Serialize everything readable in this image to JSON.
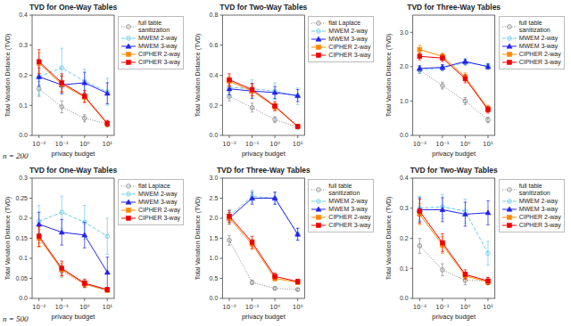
{
  "chart_data": [
    {
      "type": "line",
      "title": "TVD for One-Way Tables",
      "x_label": "privacy budget",
      "y_label": "Total Variation Distance (TVD)",
      "annotations": [
        "n = 200"
      ],
      "log": "x",
      "grid": false,
      "legend": "right",
      "x": [
        0.01,
        0.1,
        1.0,
        10.0
      ],
      "xlim": [
        0.005,
        20
      ],
      "xticks": [
        {
          "value": 0.01,
          "label": "10⁻²"
        },
        {
          "value": 0.1,
          "label": "10⁻¹"
        },
        {
          "value": 1.0,
          "label": "10⁰"
        },
        {
          "value": 10.0,
          "label": "10¹"
        }
      ],
      "ylim": [
        0.0,
        0.4
      ],
      "yticks": [
        {
          "value": 0.0,
          "label": "0.0"
        },
        0.1,
        0.2,
        0.3,
        0.4
      ],
      "series": [
        {
          "name": "full table\nsanitization",
          "color": "#888888",
          "marker": "open-circle",
          "line_style": "dotted",
          "values": [
            0.155,
            0.095,
            0.057,
            0.038
          ],
          "errors": [
            0.025,
            0.02,
            0.012,
            0.01
          ]
        },
        {
          "name": "MWEM 2-way",
          "color": "#66CCEE",
          "marker": "open-circle",
          "line_style": "dashed",
          "values": [
            0.195,
            0.225,
            0.18,
            0.145
          ],
          "errors": [
            0.06,
            0.065,
            0.04,
            0.045
          ]
        },
        {
          "name": "MWEM 3-way",
          "color": "#2222EE",
          "marker": "triangle",
          "line_style": "solid",
          "values": [
            0.195,
            0.168,
            0.175,
            0.14
          ],
          "errors": [
            0.03,
            0.03,
            0.035,
            0.035
          ]
        },
        {
          "name": "CIPHER 2-way",
          "color": "#FF8800",
          "marker": "square",
          "line_style": "solid",
          "values": [
            0.24,
            0.17,
            0.127,
            0.038
          ],
          "errors": [
            0.035,
            0.028,
            0.018,
            0.008
          ]
        },
        {
          "name": "CIPHER 3-way",
          "color": "#EE0000",
          "marker": "square",
          "line_style": "solid",
          "values": [
            0.245,
            0.175,
            0.13,
            0.04
          ],
          "errors": [
            0.04,
            0.03,
            0.02,
            0.01
          ]
        }
      ]
    },
    {
      "type": "line",
      "title": "TVD for Two-Way Tables",
      "x_label": "privacy budget",
      "y_label": "Total Variation Distance (TVD)",
      "log": "x",
      "grid": false,
      "legend": "right",
      "x": [
        0.01,
        0.1,
        1.0,
        10.0
      ],
      "xlim": [
        0.005,
        20
      ],
      "xticks": [
        {
          "value": 0.01,
          "label": "10⁻²"
        },
        {
          "value": 0.1,
          "label": "10⁻¹"
        },
        {
          "value": 1.0,
          "label": "10⁰"
        },
        {
          "value": 10.0,
          "label": "10¹"
        }
      ],
      "ylim": [
        0.0,
        0.8
      ],
      "yticks": [
        {
          "value": 0.0,
          "label": "0.0"
        },
        0.2,
        0.4,
        0.6,
        0.8
      ],
      "series": [
        {
          "name": "flat Laplace",
          "color": "#888888",
          "marker": "open-circle",
          "line_style": "dotted",
          "values": [
            0.26,
            0.185,
            0.105,
            0.055
          ],
          "errors": [
            0.03,
            0.03,
            0.02,
            0.012
          ]
        },
        {
          "name": "MWEM 2-way",
          "color": "#66CCEE",
          "marker": "open-circle",
          "line_style": "dashed",
          "values": [
            0.32,
            0.31,
            0.295,
            0.26
          ],
          "errors": [
            0.06,
            0.06,
            0.055,
            0.055
          ]
        },
        {
          "name": "MWEM 3-way",
          "color": "#2222EE",
          "marker": "triangle",
          "line_style": "solid",
          "values": [
            0.31,
            0.295,
            0.285,
            0.265
          ],
          "errors": [
            0.04,
            0.05,
            0.04,
            0.04
          ]
        },
        {
          "name": "CIPHER 2-way",
          "color": "#FF8800",
          "marker": "square",
          "line_style": "solid",
          "values": [
            0.36,
            0.295,
            0.19,
            0.058
          ],
          "errors": [
            0.035,
            0.035,
            0.025,
            0.01
          ]
        },
        {
          "name": "CIPHER 3-way",
          "color": "#EE0000",
          "marker": "square",
          "line_style": "solid",
          "values": [
            0.37,
            0.305,
            0.195,
            0.06
          ],
          "errors": [
            0.04,
            0.04,
            0.03,
            0.012
          ]
        }
      ]
    },
    {
      "type": "line",
      "title": "TVD for Three-Way Tables",
      "x_label": "privacy budget",
      "y_label": "Total Variation Distance (TVD)",
      "log": "x",
      "grid": false,
      "legend": "right",
      "x": [
        0.01,
        0.1,
        1.0,
        10.0
      ],
      "xlim": [
        0.005,
        20
      ],
      "xticks": [
        {
          "value": 0.01,
          "label": "10⁻²"
        },
        {
          "value": 0.1,
          "label": "10⁻¹"
        },
        {
          "value": 1.0,
          "label": "10⁰"
        },
        {
          "value": 10.0,
          "label": "10¹"
        }
      ],
      "ylim": [
        0.0,
        3.5
      ],
      "yticks": [
        {
          "value": 0.0,
          "label": "0.0"
        },
        {
          "value": 1.0,
          "label": "1.0"
        },
        {
          "value": 2.0,
          "label": "2.0"
        },
        {
          "value": 3.0,
          "label": "3.0"
        }
      ],
      "series": [
        {
          "name": "full table\nsanitization",
          "color": "#888888",
          "marker": "open-circle",
          "line_style": "dotted",
          "values": [
            1.9,
            1.45,
            1.0,
            0.45
          ],
          "errors": [
            0.1,
            0.1,
            0.1,
            0.08
          ]
        },
        {
          "name": "MWEM 2-way",
          "color": "#66CCEE",
          "marker": "open-circle",
          "line_style": "dashed",
          "values": [
            1.9,
            1.96,
            2.12,
            2.02
          ],
          "errors": [
            0.08,
            0.08,
            0.08,
            0.08
          ]
        },
        {
          "name": "MWEM 3-way",
          "color": "#2222EE",
          "marker": "triangle",
          "line_style": "solid",
          "values": [
            1.95,
            1.98,
            2.15,
            2.0
          ],
          "errors": [
            0.08,
            0.08,
            0.08,
            0.08
          ]
        },
        {
          "name": "CIPHER 2-way",
          "color": "#FF8800",
          "marker": "square",
          "line_style": "solid",
          "values": [
            2.5,
            2.3,
            1.7,
            0.78
          ],
          "errors": [
            0.12,
            0.1,
            0.12,
            0.1
          ]
        },
        {
          "name": "CIPHER 3-way",
          "color": "#EE0000",
          "marker": "square",
          "line_style": "solid",
          "values": [
            2.3,
            2.25,
            1.65,
            0.75
          ],
          "errors": [
            0.1,
            0.1,
            0.12,
            0.1
          ]
        }
      ]
    },
    {
      "type": "line",
      "title": "TVD for One-Way Tables",
      "x_label": "privacy budget",
      "y_label": "Total Variation Distance (TVD)",
      "annotations": [
        "n = 500"
      ],
      "log": "x",
      "grid": false,
      "legend": "right",
      "x": [
        0.01,
        0.1,
        1.0,
        10.0
      ],
      "xlim": [
        0.005,
        20
      ],
      "xticks": [
        {
          "value": 0.01,
          "label": "10⁻²"
        },
        {
          "value": 0.1,
          "label": "10⁻¹"
        },
        {
          "value": 1.0,
          "label": "10⁰"
        },
        {
          "value": 10.0,
          "label": "10¹"
        }
      ],
      "ylim": [
        0.0,
        0.3
      ],
      "yticks": [
        {
          "value": 0.0,
          "label": "0.0"
        },
        0.05,
        0.1,
        0.15,
        0.2,
        0.25,
        0.3
      ],
      "series": [
        {
          "name": "flat Laplace",
          "color": "#888888",
          "marker": "open-circle",
          "line_style": "dotted",
          "values": [
            0.158,
            0.068,
            0.035,
            0.02
          ],
          "errors": [
            0.02,
            0.015,
            0.008,
            0.004
          ]
        },
        {
          "name": "MWEM 2-way",
          "color": "#66CCEE",
          "marker": "open-circle",
          "line_style": "dashed",
          "values": [
            0.192,
            0.215,
            0.19,
            0.155
          ],
          "errors": [
            0.04,
            0.04,
            0.042,
            0.045
          ]
        },
        {
          "name": "MWEM 3-way",
          "color": "#2222EE",
          "marker": "triangle",
          "line_style": "solid",
          "values": [
            0.185,
            0.165,
            0.158,
            0.065
          ],
          "errors": [
            0.03,
            0.032,
            0.032,
            0.038
          ]
        },
        {
          "name": "CIPHER 2-way",
          "color": "#FF8800",
          "marker": "square",
          "line_style": "solid",
          "values": [
            0.15,
            0.072,
            0.036,
            0.02
          ],
          "errors": [
            0.022,
            0.016,
            0.009,
            0.004
          ]
        },
        {
          "name": "CIPHER 3-way",
          "color": "#EE0000",
          "marker": "square",
          "line_style": "solid",
          "values": [
            0.155,
            0.075,
            0.038,
            0.022
          ],
          "errors": [
            0.025,
            0.018,
            0.01,
            0.005
          ]
        }
      ]
    },
    {
      "type": "line",
      "title": "TVD for Three-Way Tables",
      "x_label": "privacy budget",
      "y_label": "Total Variation Distance (TVD)",
      "log": "x",
      "grid": false,
      "legend": "right",
      "x": [
        0.01,
        0.1,
        1.0,
        10.0
      ],
      "xlim": [
        0.005,
        20
      ],
      "xticks": [
        {
          "value": 0.01,
          "label": "10⁻²"
        },
        {
          "value": 0.1,
          "label": "10⁻¹"
        },
        {
          "value": 1.0,
          "label": "10⁰"
        },
        {
          "value": 10.0,
          "label": "10¹"
        }
      ],
      "ylim": [
        0.0,
        3.0
      ],
      "yticks": [
        {
          "value": 0.0,
          "label": "0.0"
        },
        0.5,
        {
          "value": 1.0,
          "label": "1.0"
        },
        1.5,
        {
          "value": 2.0,
          "label": "2.0"
        },
        2.5,
        {
          "value": 3.0,
          "label": "3.0"
        }
      ],
      "series": [
        {
          "name": "full table\nsanitization",
          "color": "#888888",
          "marker": "open-circle",
          "line_style": "dotted",
          "values": [
            1.45,
            0.4,
            0.25,
            0.22
          ],
          "errors": [
            0.12,
            0.05,
            0.04,
            0.03
          ]
        },
        {
          "name": "MWEM 2-way",
          "color": "#66CCEE",
          "marker": "open-circle",
          "line_style": "dashed",
          "values": [
            2.05,
            2.55,
            2.5,
            1.6
          ],
          "errors": [
            0.15,
            0.15,
            0.15,
            0.15
          ]
        },
        {
          "name": "MWEM 3-way",
          "color": "#2222EE",
          "marker": "triangle",
          "line_style": "solid",
          "values": [
            2.0,
            2.5,
            2.5,
            1.6
          ],
          "errors": [
            0.15,
            0.15,
            0.15,
            0.15
          ]
        },
        {
          "name": "CIPHER 2-way",
          "color": "#FF8800",
          "marker": "square",
          "line_style": "solid",
          "values": [
            2.0,
            1.35,
            0.5,
            0.4
          ],
          "errors": [
            0.14,
            0.13,
            0.07,
            0.05
          ]
        },
        {
          "name": "CIPHER 3-way",
          "color": "#EE0000",
          "marker": "square",
          "line_style": "solid",
          "values": [
            2.05,
            1.4,
            0.55,
            0.42
          ],
          "errors": [
            0.15,
            0.15,
            0.08,
            0.06
          ]
        }
      ]
    },
    {
      "type": "line",
      "title": "TVD for Two-Way Tables",
      "x_label": "privacy budget",
      "y_label": "Total Variation Distance (TVD)",
      "log": "x",
      "grid": false,
      "legend": "right",
      "x": [
        0.01,
        0.1,
        1.0,
        10.0
      ],
      "xlim": [
        0.005,
        20
      ],
      "xticks": [
        {
          "value": 0.01,
          "label": "10⁻²"
        },
        {
          "value": 0.1,
          "label": "10⁻¹"
        },
        {
          "value": 1.0,
          "label": "10⁰"
        },
        {
          "value": 10.0,
          "label": "10¹"
        }
      ],
      "ylim": [
        0.0,
        0.4
      ],
      "yticks": [
        {
          "value": 0.0,
          "label": "0.0"
        },
        0.1,
        0.2,
        0.3,
        0.4
      ],
      "series": [
        {
          "name": "full table\nsanitization",
          "color": "#888888",
          "marker": "open-circle",
          "line_style": "dotted",
          "values": [
            0.175,
            0.095,
            0.06,
            0.058
          ],
          "errors": [
            0.025,
            0.02,
            0.015,
            0.012
          ]
        },
        {
          "name": "MWEM 2-way",
          "color": "#66CCEE",
          "marker": "open-circle",
          "line_style": "dashed",
          "values": [
            0.3,
            0.305,
            0.29,
            0.15
          ],
          "errors": [
            0.04,
            0.04,
            0.04,
            0.04
          ]
        },
        {
          "name": "MWEM 3-way",
          "color": "#2222EE",
          "marker": "triangle",
          "line_style": "solid",
          "values": [
            0.295,
            0.295,
            0.28,
            0.285
          ],
          "errors": [
            0.04,
            0.04,
            0.04,
            0.04
          ]
        },
        {
          "name": "CIPHER 2-way",
          "color": "#FF8800",
          "marker": "square",
          "line_style": "solid",
          "values": [
            0.28,
            0.178,
            0.075,
            0.055
          ],
          "errors": [
            0.035,
            0.028,
            0.013,
            0.01
          ]
        },
        {
          "name": "CIPHER 3-way",
          "color": "#EE0000",
          "marker": "square",
          "line_style": "solid",
          "values": [
            0.29,
            0.185,
            0.08,
            0.058
          ],
          "errors": [
            0.04,
            0.03,
            0.015,
            0.012
          ]
        }
      ]
    }
  ]
}
